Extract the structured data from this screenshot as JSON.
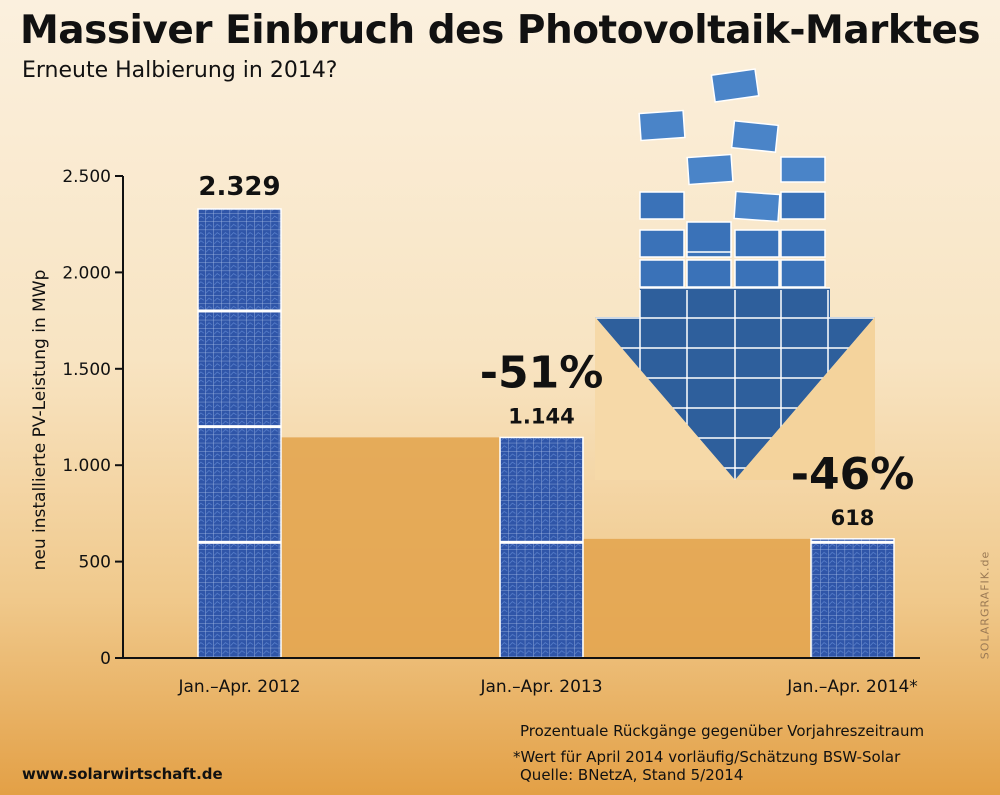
{
  "header": {
    "title": "Massiver Einbruch des Photovoltaik-Marktes",
    "subtitle": "Erneute Halbierung in 2014?"
  },
  "chart_data": {
    "type": "bar",
    "title": "Massiver Einbruch des Photovoltaik-Marktes",
    "subtitle": "Erneute Halbierung in 2014?",
    "ylabel": "neu installierte PV-Leistung in MWp",
    "xlabel": "",
    "ylim": [
      0,
      2500
    ],
    "yticks": [
      0,
      500,
      1000,
      1500,
      2000,
      2500
    ],
    "ytick_labels": [
      "0",
      "500",
      "1.000",
      "1.500",
      "2.000",
      "2.500"
    ],
    "categories": [
      "Jan.–Apr. 2012",
      "Jan.–Apr. 2013",
      "Jan.–Apr. 2014*"
    ],
    "values": [
      2329,
      1144,
      618
    ],
    "value_labels": [
      "2.329",
      "1.144",
      "618"
    ],
    "change_labels": [
      "",
      "-51%",
      "-46%"
    ],
    "colors": {
      "bar": "#2f55a8",
      "step": "#e3a550",
      "arrow": "#2e5f9c"
    }
  },
  "footer": {
    "note_percent": "Prozentuale Rückgänge gegenüber Vorjahreszeitraum",
    "note_estimate": "*Wert für April 2014 vorläufig/Schätzung BSW-Solar",
    "note_source": "Quelle: BNetzA, Stand 5/2014",
    "website": "www.solarwirtschaft.de",
    "watermark": "SOLARGRAFIK.de"
  }
}
